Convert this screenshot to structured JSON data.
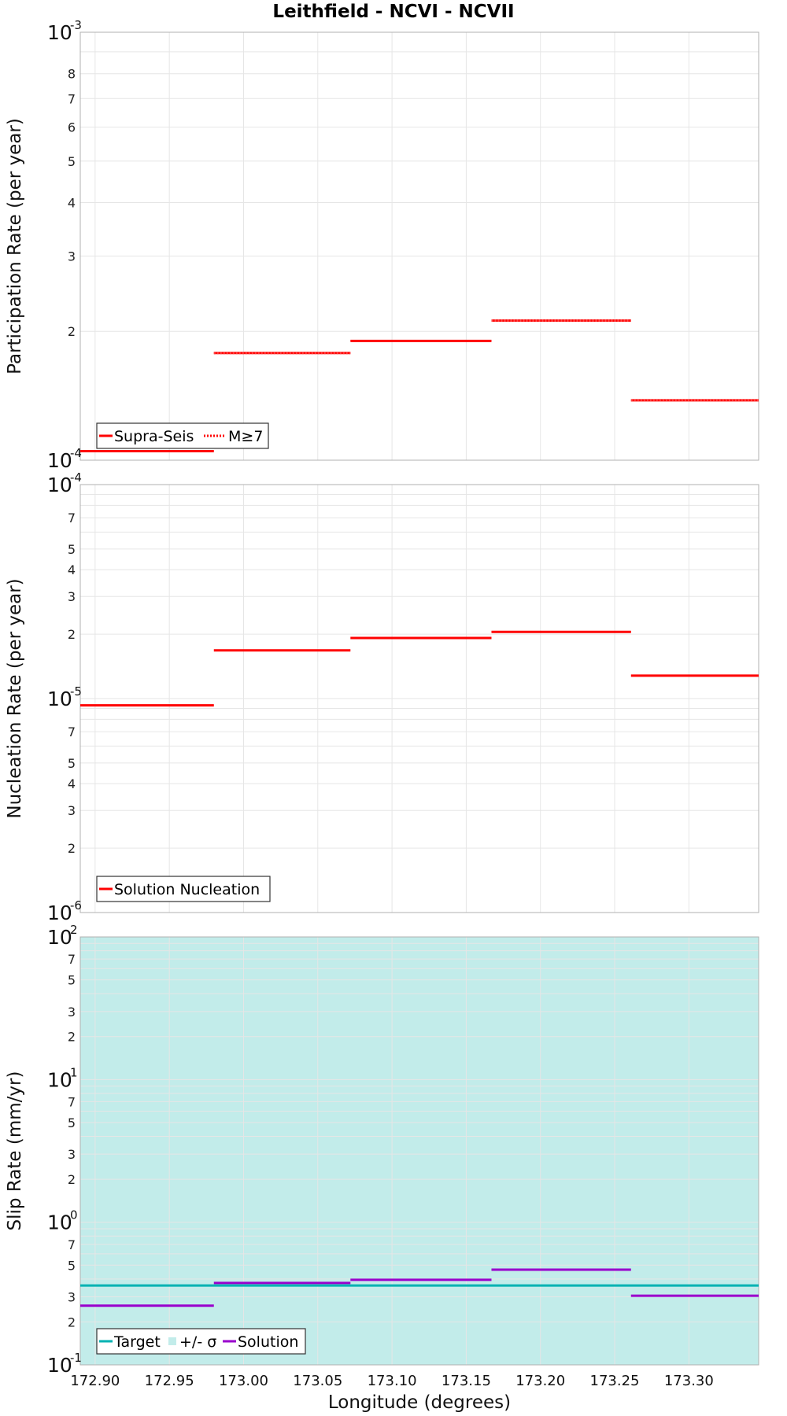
{
  "title": "Leithfield - NCVI - NCVII",
  "xlabel": "Longitude (degrees)",
  "x_ticks": [
    "172.90",
    "172.95",
    "173.00",
    "173.05",
    "173.10",
    "173.15",
    "173.20",
    "173.25",
    "173.30"
  ],
  "colors": {
    "solution_red": "#ff0000",
    "m7_pink": "#ffb6c1",
    "target_teal": "#00b2b2",
    "sigma_fill": "#c2ecea",
    "solution_purple": "#9900cc",
    "grid": "#e6e6e6",
    "frame": "#b0b0b0"
  },
  "chart_data": [
    {
      "type": "line",
      "ylabel": "Participation Rate (per year)",
      "yscale": "log",
      "xlim": [
        172.89,
        173.347
      ],
      "ylim": [
        0.0001,
        0.001
      ],
      "grid": true,
      "decade_labels": [
        {
          "base": "10",
          "exp": "-4"
        },
        {
          "base": "10",
          "exp": "-3"
        }
      ],
      "minor_labels": [
        "2",
        "3",
        "4",
        "5",
        "6",
        "7",
        "8"
      ],
      "series": [
        {
          "name": "Supra-Seis",
          "style": "solid",
          "color": "#ff0000",
          "segments": [
            [
              172.89,
              172.98,
              0.000105
            ],
            [
              172.98,
              173.072,
              0.000178
            ],
            [
              173.072,
              173.167,
              0.00019
            ],
            [
              173.167,
              173.261,
              0.000212
            ],
            [
              173.261,
              173.347,
              0.000138
            ]
          ]
        },
        {
          "name": "M≥7",
          "style": "dotted",
          "color": "#ff0000",
          "segments": [
            [
              172.98,
              173.072,
              0.000178
            ],
            [
              173.167,
              173.261,
              0.000212
            ],
            [
              173.261,
              173.347,
              0.000138
            ]
          ]
        }
      ],
      "legend": {
        "position": "bottom-left",
        "entries": [
          "Supra-Seis",
          "M≥7"
        ]
      }
    },
    {
      "type": "line",
      "ylabel": "Nucleation Rate (per year)",
      "yscale": "log",
      "xlim": [
        172.89,
        173.347
      ],
      "ylim": [
        1e-06,
        0.0001
      ],
      "grid": true,
      "decade_labels": [
        {
          "base": "10",
          "exp": "-6"
        },
        {
          "base": "10",
          "exp": "-5"
        },
        {
          "base": "10",
          "exp": "-4"
        }
      ],
      "minor_labels": [
        "2",
        "3",
        "4",
        "5",
        "7",
        "2",
        "3",
        "4",
        "5",
        "7"
      ],
      "series": [
        {
          "name": "Solution Nucleation",
          "style": "solid",
          "color": "#ff0000",
          "segments": [
            [
              172.89,
              172.98,
              9.3e-06
            ],
            [
              172.98,
              173.072,
              1.68e-05
            ],
            [
              173.072,
              173.167,
              1.92e-05
            ],
            [
              173.167,
              173.261,
              2.05e-05
            ],
            [
              173.261,
              173.347,
              1.28e-05
            ]
          ]
        }
      ],
      "legend": {
        "position": "bottom-left",
        "entries": [
          "Solution Nucleation"
        ]
      }
    },
    {
      "type": "line",
      "ylabel": "Slip Rate (mm/yr)",
      "yscale": "log",
      "xlim": [
        172.89,
        173.347
      ],
      "ylim": [
        0.1,
        100
      ],
      "grid": true,
      "decade_labels": [
        {
          "base": "10",
          "exp": "-1"
        },
        {
          "base": "10",
          "exp": "0"
        },
        {
          "base": "10",
          "exp": "1"
        },
        {
          "base": "10",
          "exp": "2"
        }
      ],
      "minor_labels": [
        "2",
        "3",
        "5",
        "7",
        "2",
        "3",
        "5",
        "7",
        "2",
        "3",
        "5",
        "7"
      ],
      "series": [
        {
          "name": "Target",
          "style": "solid",
          "color": "#00b2b2",
          "segments": [
            [
              172.89,
              173.347,
              0.36
            ]
          ]
        },
        {
          "name": "+/- σ",
          "style": "band",
          "color": "#c2ecea",
          "band": [
            0.1,
            100
          ]
        },
        {
          "name": "Solution",
          "style": "solid",
          "color": "#9900cc",
          "segments": [
            [
              172.89,
              172.98,
              0.26
            ],
            [
              172.98,
              173.072,
              0.375
            ],
            [
              173.072,
              173.167,
              0.395
            ],
            [
              173.167,
              173.261,
              0.465
            ],
            [
              173.261,
              173.347,
              0.305
            ]
          ]
        }
      ],
      "legend": {
        "position": "bottom-left",
        "entries": [
          "Target",
          "+/- σ",
          "Solution"
        ]
      }
    }
  ]
}
